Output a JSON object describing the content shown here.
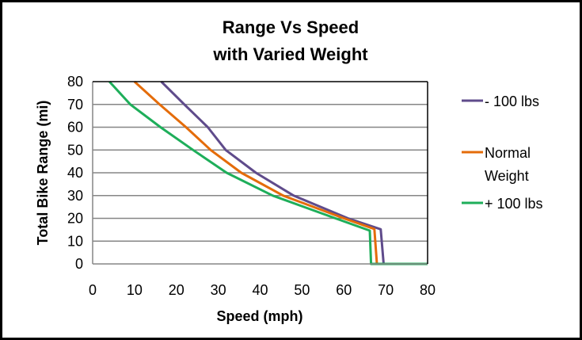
{
  "chart_data": {
    "type": "line",
    "title": [
      "Range  Vs Speed",
      "with Varied Weight"
    ],
    "xlabel": "Speed (mph)",
    "ylabel": "Total Bike Range (mi)",
    "xlim": [
      0,
      80
    ],
    "ylim": [
      0,
      80
    ],
    "xticks": [
      "0",
      "10",
      "20",
      "30",
      "40",
      "50",
      "60",
      "70",
      "80"
    ],
    "yticks": [
      "0",
      "10",
      "20",
      "30",
      "40",
      "50",
      "60",
      "70",
      "80"
    ],
    "grid": "horizontal",
    "legend_position": "right",
    "series": [
      {
        "name": "- 100 lbs",
        "color": "#5f4b8b",
        "points": [
          [
            16.4,
            80
          ],
          [
            21.9,
            70
          ],
          [
            27.5,
            60
          ],
          [
            31.8,
            50
          ],
          [
            39,
            40
          ],
          [
            48,
            30
          ],
          [
            61,
            20
          ],
          [
            68.8,
            15.2
          ],
          [
            69.5,
            0
          ],
          [
            80,
            0
          ]
        ]
      },
      {
        "name": "Normal Weight",
        "color": "#e46c0a",
        "points": [
          [
            10,
            80
          ],
          [
            16,
            70
          ],
          [
            22.3,
            60
          ],
          [
            28.2,
            50
          ],
          [
            35.5,
            40
          ],
          [
            45.5,
            30
          ],
          [
            60,
            20
          ],
          [
            67.3,
            15.3
          ],
          [
            67.9,
            0
          ],
          [
            80,
            0
          ]
        ]
      },
      {
        "name": "+ 100 lbs",
        "color": "#1eae5a",
        "points": [
          [
            4,
            80
          ],
          [
            9,
            70
          ],
          [
            16.2,
            60
          ],
          [
            24,
            50
          ],
          [
            32,
            40
          ],
          [
            43,
            30
          ],
          [
            58,
            20
          ],
          [
            66.2,
            14.6
          ],
          [
            66.5,
            0
          ],
          [
            80,
            0
          ]
        ]
      }
    ],
    "legend": [
      {
        "lines": [
          "- 100 lbs"
        ],
        "color": "#5f4b8b"
      },
      {
        "lines": [
          "Normal",
          "Weight"
        ],
        "color": "#e46c0a"
      },
      {
        "lines": [
          "+ 100 lbs"
        ],
        "color": "#1eae5a"
      }
    ]
  }
}
